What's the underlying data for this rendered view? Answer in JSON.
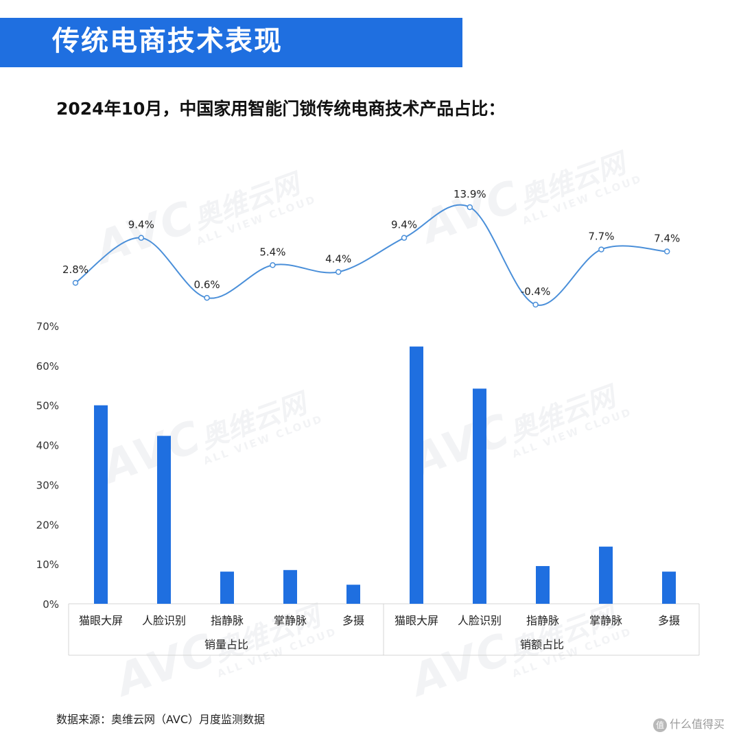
{
  "header": {
    "title": "传统电商技术表现",
    "subtitle": "2024年10月，中国家用智能门锁传统电商技术产品占比："
  },
  "footer": {
    "source": "数据来源：奥维云网（AVC）月度监测数据",
    "corner_mark": "什么值得买",
    "corner_badge": "值"
  },
  "watermark": {
    "logo": "AVC",
    "brand": "奥维云网",
    "tagline": "ALL VIEW CLOUD"
  },
  "colors": {
    "accent": "#1f6fe0",
    "bar": "#1f6fe0",
    "line": "#4a8fd9"
  },
  "chart_data": [
    {
      "type": "line",
      "series": [
        {
          "values": [
            2.8,
            9.4,
            0.6,
            5.4,
            4.4,
            9.4,
            13.9,
            -0.4,
            7.7,
            7.4
          ],
          "labels": [
            "2.8%",
            "9.4%",
            "0.6%",
            "5.4%",
            "4.4%",
            "9.4%",
            "13.9%",
            "-0.4%",
            "7.7%",
            "7.4%"
          ]
        }
      ],
      "categories": [
        "猫眼大屏",
        "人脸识别",
        "指静脉",
        "掌静脉",
        "多摄",
        "猫眼大屏",
        "人脸识别",
        "指静脉",
        "掌静脉",
        "多摄"
      ],
      "smooth": true,
      "axes_visible": false
    },
    {
      "type": "bar",
      "groups": [
        "销量占比",
        "销额占比"
      ],
      "categories": [
        "猫眼大屏",
        "人脸识别",
        "指静脉",
        "掌静脉",
        "多摄",
        "猫眼大屏",
        "人脸识别",
        "指静脉",
        "掌静脉",
        "多摄"
      ],
      "values": [
        50,
        42.3,
        8.1,
        8.5,
        4.8,
        64.8,
        54.2,
        9.5,
        14.4,
        8.1
      ],
      "ylim": [
        0,
        70
      ],
      "yticks": [
        0,
        10,
        20,
        30,
        40,
        50,
        60,
        70
      ],
      "ytick_labels": [
        "0%",
        "10%",
        "20%",
        "30%",
        "40%",
        "50%",
        "60%",
        "70%"
      ],
      "grid": false,
      "legend": "none"
    }
  ]
}
